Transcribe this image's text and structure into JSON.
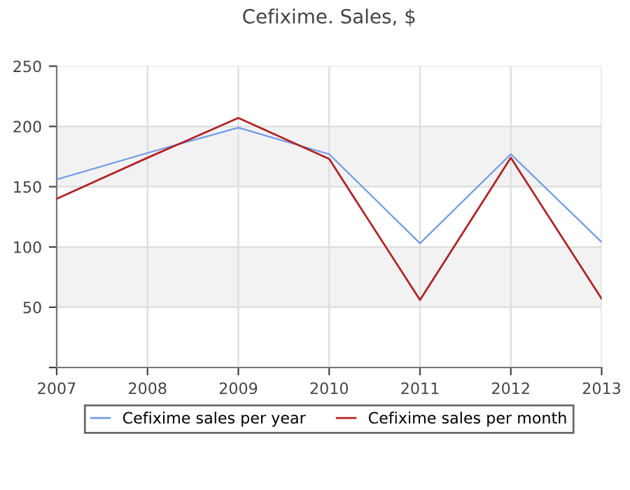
{
  "chart_data": {
    "type": "line",
    "title": "Cefixime. Sales, $",
    "x": [
      2007,
      2008,
      2009,
      2010,
      2011,
      2012,
      2013
    ],
    "series": [
      {
        "name": "Cefixime sales per year",
        "color": "#6f9be8",
        "values": [
          156,
          178,
          199,
          177,
          103,
          177,
          104
        ]
      },
      {
        "name": "Cefixime sales per month",
        "color": "#b22222",
        "values": [
          140,
          174,
          207,
          173,
          56,
          174,
          57
        ]
      }
    ],
    "xlim": [
      2007,
      2013
    ],
    "xticks": [
      2007,
      2008,
      2009,
      2010,
      2011,
      2012,
      2013
    ],
    "ylim": [
      0,
      250
    ],
    "yticks": [
      {
        "value": 0,
        "label": null
      },
      50,
      100,
      150,
      200,
      250
    ],
    "bands": [
      {
        "axis": "y",
        "from": 50,
        "to": 100,
        "color": "#f2f2f2"
      },
      {
        "axis": "y",
        "from": 150,
        "to": 200,
        "color": "#f2f2f2"
      }
    ],
    "grid": true,
    "legend": "bottom",
    "marker": "none",
    "line_style": "solid"
  }
}
